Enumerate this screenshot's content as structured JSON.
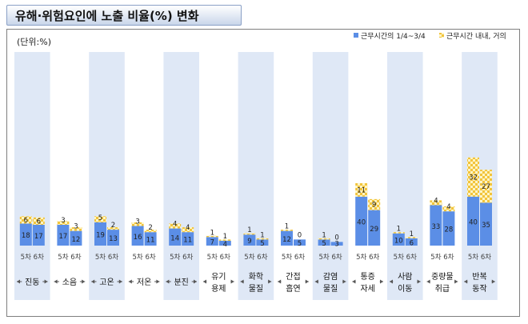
{
  "header": {
    "title": "유해·위험요인에 노출 비율(%) 변화"
  },
  "chart_data": {
    "type": "bar",
    "unit_label": "(단위:%)",
    "legend": {
      "position": "top-right",
      "items": [
        "근무시간의 1/4~3/4",
        "근무시간 내내, 거의"
      ]
    },
    "sub_labels": [
      "5차",
      "6차"
    ],
    "categories": [
      {
        "label": [
          "진동"
        ],
        "w5": [
          18,
          6
        ],
        "w6": [
          17,
          6
        ]
      },
      {
        "label": [
          "소음"
        ],
        "w5": [
          17,
          3
        ],
        "w6": [
          12,
          3
        ]
      },
      {
        "label": [
          "고온"
        ],
        "w5": [
          19,
          5
        ],
        "w6": [
          13,
          2
        ]
      },
      {
        "label": [
          "저온"
        ],
        "w5": [
          16,
          3
        ],
        "w6": [
          11,
          2
        ]
      },
      {
        "label": [
          "분진"
        ],
        "w5": [
          14,
          4
        ],
        "w6": [
          11,
          4
        ]
      },
      {
        "label": [
          "유기",
          "용제"
        ],
        "w5": [
          7,
          1
        ],
        "w6": [
          4,
          1
        ]
      },
      {
        "label": [
          "화학",
          "물질"
        ],
        "w5": [
          9,
          1
        ],
        "w6": [
          5,
          1
        ]
      },
      {
        "label": [
          "간접",
          "흡연"
        ],
        "w5": [
          12,
          1
        ],
        "w6": [
          5,
          0
        ]
      },
      {
        "label": [
          "감염",
          "물질"
        ],
        "w5": [
          5,
          1
        ],
        "w6": [
          3,
          0
        ]
      },
      {
        "label": [
          "통증",
          "자세"
        ],
        "w5": [
          40,
          11
        ],
        "w6": [
          29,
          9
        ]
      },
      {
        "label": [
          "사람",
          "이동"
        ],
        "w5": [
          10,
          1
        ],
        "w6": [
          6,
          1
        ]
      },
      {
        "label": [
          "중량물",
          "취급"
        ],
        "w5": [
          33,
          4
        ],
        "w6": [
          28,
          4
        ]
      },
      {
        "label": [
          "반복",
          "동작"
        ],
        "w5": [
          40,
          32
        ],
        "w6": [
          35,
          27
        ]
      }
    ],
    "series": [
      {
        "name": "근무시간의 1/4~3/4"
      },
      {
        "name": "근무시간 내내, 거의"
      }
    ],
    "colors": {
      "blue": "#5b8ee6",
      "hatch_bg": "#f2c43c",
      "hatch_fg": "#fdf4c4",
      "panel": "#dfe8f6"
    },
    "value_labels_on_bars": [
      "18",
      "6",
      "17",
      "6",
      "17",
      "3",
      "12",
      "3",
      "19",
      "5",
      "13",
      "2",
      "16",
      "3",
      "11",
      "2",
      "14",
      "4",
      "11",
      "4",
      "7",
      "1",
      "4",
      "1",
      "9",
      "1",
      "5",
      "1",
      "12",
      "1",
      "5",
      "0",
      "5",
      "1",
      "3",
      "0",
      "40",
      "11",
      "29",
      "9",
      "10",
      "1",
      "6",
      "1",
      "33",
      "4",
      "28",
      "4",
      "40",
      "32",
      "35",
      "27"
    ]
  }
}
